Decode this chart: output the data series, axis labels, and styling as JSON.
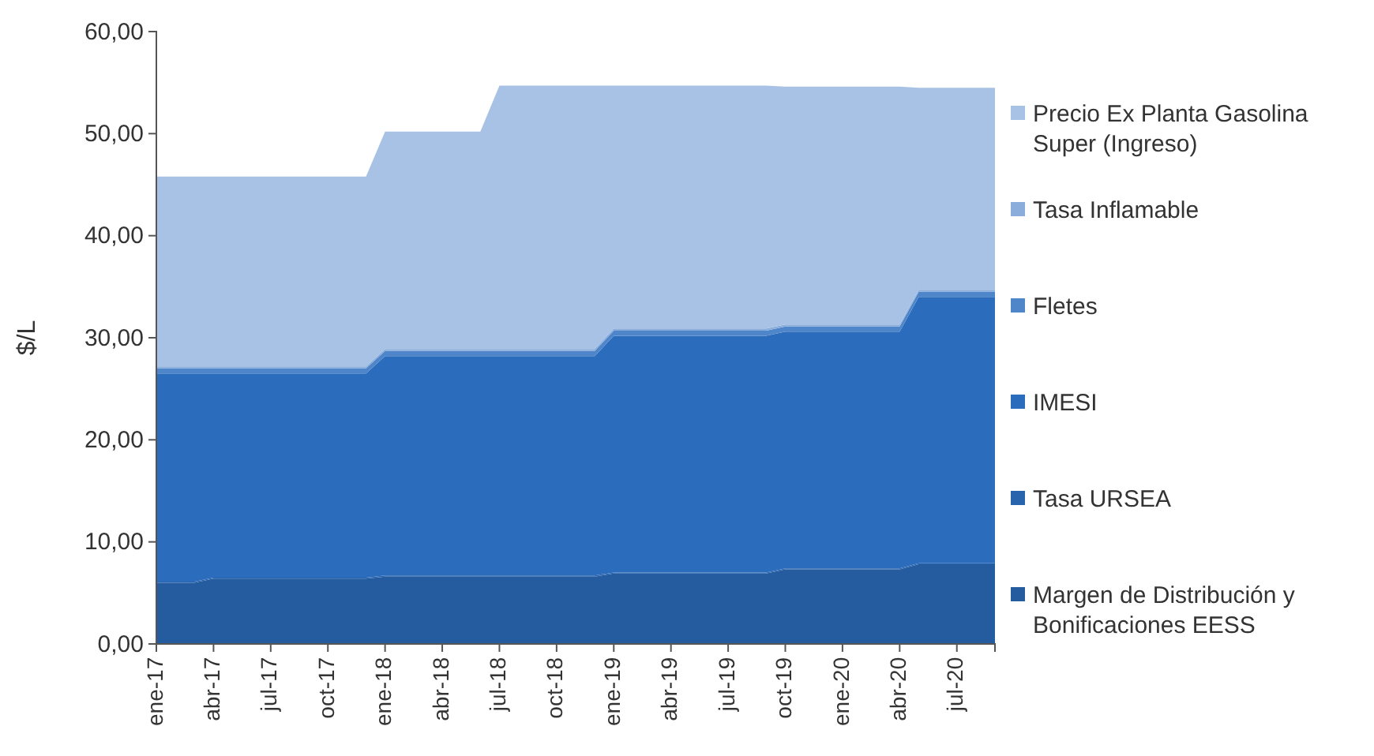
{
  "chart_data": {
    "type": "area",
    "stacked": true,
    "ylabel": "$/L",
    "legend": "right",
    "grid": false,
    "categories": [
      "ene-17",
      null,
      null,
      "abr-17",
      null,
      null,
      "jul-17",
      null,
      null,
      "oct-17",
      null,
      null,
      "ene-18",
      null,
      null,
      "abr-18",
      null,
      null,
      "jul-18",
      null,
      null,
      "oct-18",
      null,
      null,
      "ene-19",
      null,
      null,
      "abr-19",
      null,
      null,
      "jul-19",
      null,
      null,
      "oct-19",
      null,
      null,
      "ene-20",
      null,
      null,
      "abr-20",
      null,
      null,
      "jul-20",
      null,
      null
    ],
    "ylim": [
      0,
      60
    ],
    "yticks": [
      {
        "value": 0,
        "label": "0,00"
      },
      {
        "value": 10,
        "label": "10,00"
      },
      {
        "value": 20,
        "label": "20,00"
      },
      {
        "value": 30,
        "label": "30,00"
      },
      {
        "value": 40,
        "label": "40,00"
      },
      {
        "value": 50,
        "label": "50,00"
      },
      {
        "value": 60,
        "label": "60,00"
      }
    ],
    "series": [
      {
        "name": "Margen de Distribución y Bonificaciones EESS",
        "color": "#255c9f",
        "values": [
          6.0,
          6.0,
          6.0,
          6.4,
          6.4,
          6.4,
          6.4,
          6.4,
          6.4,
          6.4,
          6.4,
          6.4,
          6.6,
          6.6,
          6.6,
          6.6,
          6.6,
          6.6,
          6.6,
          6.6,
          6.6,
          6.6,
          6.6,
          6.6,
          6.9,
          6.9,
          6.9,
          6.9,
          6.9,
          6.9,
          6.9,
          6.9,
          6.9,
          7.3,
          7.3,
          7.3,
          7.3,
          7.3,
          7.3,
          7.3,
          7.8,
          7.8,
          7.8,
          7.8,
          7.8
        ]
      },
      {
        "name": "Tasa URSEA",
        "color": "#2864ad",
        "values": [
          0.1,
          0.1,
          0.1,
          0.1,
          0.1,
          0.1,
          0.1,
          0.1,
          0.1,
          0.1,
          0.1,
          0.1,
          0.1,
          0.1,
          0.1,
          0.1,
          0.1,
          0.1,
          0.1,
          0.1,
          0.1,
          0.1,
          0.1,
          0.1,
          0.1,
          0.1,
          0.1,
          0.1,
          0.1,
          0.1,
          0.1,
          0.1,
          0.1,
          0.1,
          0.1,
          0.1,
          0.1,
          0.1,
          0.1,
          0.1,
          0.1,
          0.1,
          0.1,
          0.1,
          0.1
        ]
      },
      {
        "name": "IMESI",
        "color": "#2c6cbd",
        "values": [
          20.4,
          20.4,
          20.4,
          20.0,
          20.0,
          20.0,
          20.0,
          20.0,
          20.0,
          20.0,
          20.0,
          20.0,
          21.5,
          21.5,
          21.5,
          21.5,
          21.5,
          21.5,
          21.5,
          21.5,
          21.5,
          21.5,
          21.5,
          21.5,
          23.2,
          23.2,
          23.2,
          23.2,
          23.2,
          23.2,
          23.2,
          23.2,
          23.2,
          23.2,
          23.2,
          23.2,
          23.2,
          23.2,
          23.2,
          23.2,
          26.1,
          26.1,
          26.1,
          26.1,
          26.1
        ]
      },
      {
        "name": "Fletes",
        "color": "#4f86c9",
        "values": [
          0.5,
          0.5,
          0.5,
          0.5,
          0.5,
          0.5,
          0.5,
          0.5,
          0.5,
          0.5,
          0.5,
          0.5,
          0.5,
          0.5,
          0.5,
          0.5,
          0.5,
          0.5,
          0.5,
          0.5,
          0.5,
          0.5,
          0.5,
          0.5,
          0.5,
          0.5,
          0.5,
          0.5,
          0.5,
          0.5,
          0.5,
          0.5,
          0.5,
          0.5,
          0.5,
          0.5,
          0.5,
          0.5,
          0.5,
          0.5,
          0.5,
          0.5,
          0.5,
          0.5,
          0.5
        ]
      },
      {
        "name": "Tasa Inflamable",
        "color": "#8aaddc",
        "values": [
          0.2,
          0.2,
          0.2,
          0.2,
          0.2,
          0.2,
          0.2,
          0.2,
          0.2,
          0.2,
          0.2,
          0.2,
          0.2,
          0.2,
          0.2,
          0.2,
          0.2,
          0.2,
          0.2,
          0.2,
          0.2,
          0.2,
          0.2,
          0.2,
          0.2,
          0.2,
          0.2,
          0.2,
          0.2,
          0.2,
          0.2,
          0.2,
          0.2,
          0.2,
          0.2,
          0.2,
          0.2,
          0.2,
          0.2,
          0.2,
          0.2,
          0.2,
          0.2,
          0.2,
          0.2
        ]
      },
      {
        "name": "Precio Ex Planta Gasolina Super (Ingreso)",
        "color": "#a8c2e6",
        "values": [
          18.6,
          18.6,
          18.6,
          18.6,
          18.6,
          18.6,
          18.6,
          18.6,
          18.6,
          18.6,
          18.6,
          18.6,
          21.3,
          21.3,
          21.3,
          21.3,
          21.3,
          21.3,
          25.8,
          25.8,
          25.8,
          25.8,
          25.8,
          25.8,
          23.8,
          23.8,
          23.8,
          23.8,
          23.8,
          23.8,
          23.8,
          23.8,
          23.8,
          23.3,
          23.3,
          23.3,
          23.3,
          23.3,
          23.3,
          23.3,
          19.8,
          19.8,
          19.8,
          19.8,
          19.8
        ]
      }
    ]
  }
}
